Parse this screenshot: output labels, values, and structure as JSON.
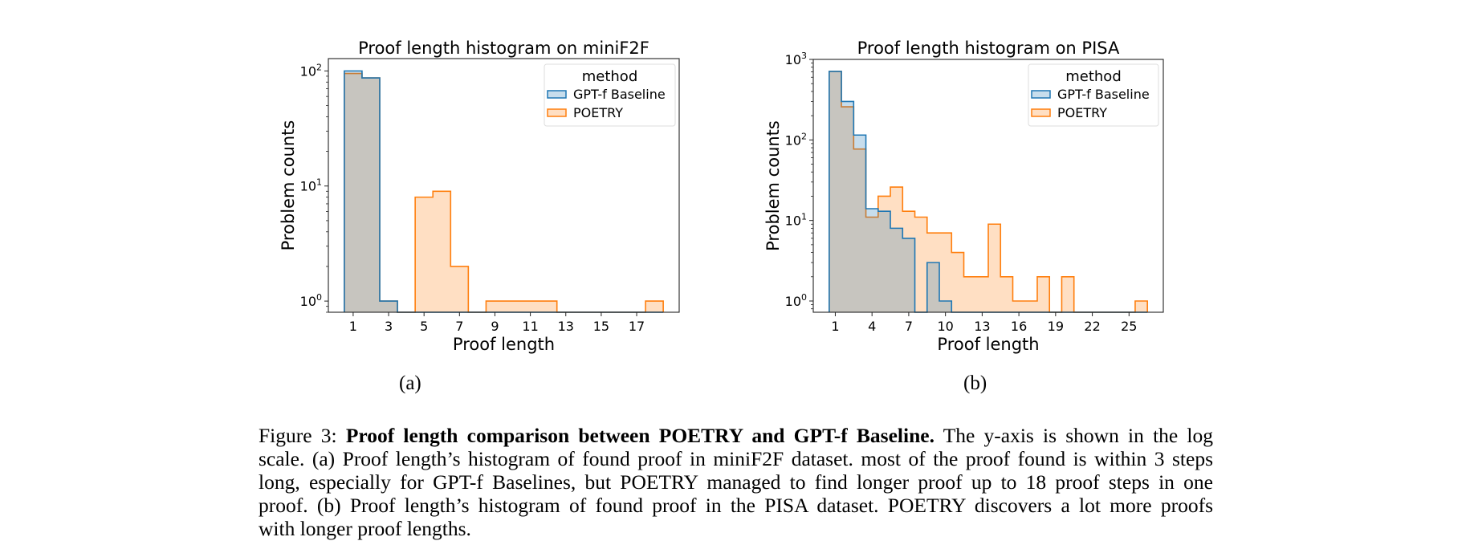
{
  "chart_data": [
    {
      "type": "bar",
      "subtype": "step histogram",
      "title": "Proof length histogram on miniF2F",
      "xlabel": "Proof length",
      "ylabel": "Problem counts",
      "yscale": "log",
      "ylim": [
        0.8,
        128
      ],
      "xlim": [
        -0.4,
        19.4
      ],
      "xticks": [
        1,
        3,
        5,
        7,
        9,
        11,
        13,
        15,
        17
      ],
      "yticks": [
        {
          "value": 1,
          "base": "10",
          "exp": "0"
        },
        {
          "value": 10,
          "base": "10",
          "exp": "1"
        },
        {
          "value": 100,
          "base": "10",
          "exp": "2"
        }
      ],
      "legend": {
        "title": "method",
        "placement": "top-right"
      },
      "grid": false,
      "categories": [
        1,
        2,
        3,
        4,
        5,
        6,
        7,
        8,
        9,
        10,
        11,
        12,
        13,
        14,
        15,
        16,
        17,
        18
      ],
      "series": [
        {
          "name": "POETRY",
          "color": "#ff7f0e",
          "values": [
            95,
            87,
            1,
            0,
            8,
            9,
            2,
            0,
            1,
            1,
            1,
            1,
            0,
            0,
            0,
            0,
            0,
            1
          ]
        },
        {
          "name": "GPT-f Baseline",
          "color": "#1f77b4",
          "values": [
            100,
            87,
            1,
            0,
            0,
            0,
            0,
            0,
            0,
            0,
            0,
            0,
            0,
            0,
            0,
            0,
            0,
            0
          ]
        }
      ]
    },
    {
      "type": "bar",
      "subtype": "step histogram",
      "title": "Proof length histogram on PISA",
      "xlabel": "Proof length",
      "ylabel": "Problem counts",
      "yscale": "log",
      "ylim": [
        0.725,
        1000
      ],
      "xlim": [
        -0.8,
        27.8
      ],
      "xticks": [
        1,
        4,
        7,
        10,
        13,
        16,
        19,
        22,
        25
      ],
      "yticks": [
        {
          "value": 1,
          "base": "10",
          "exp": "0"
        },
        {
          "value": 10,
          "base": "10",
          "exp": "1"
        },
        {
          "value": 100,
          "base": "10",
          "exp": "2"
        },
        {
          "value": 1000,
          "base": "10",
          "exp": "3"
        }
      ],
      "legend": {
        "title": "method",
        "placement": "top-right"
      },
      "grid": false,
      "categories": [
        1,
        2,
        3,
        4,
        5,
        6,
        7,
        8,
        9,
        10,
        11,
        12,
        13,
        14,
        15,
        16,
        17,
        18,
        19,
        20,
        21,
        22,
        23,
        24,
        25,
        26
      ],
      "series": [
        {
          "name": "POETRY",
          "color": "#ff7f0e",
          "values": [
            710,
            258,
            77,
            11,
            20,
            26,
            13,
            11,
            7,
            7,
            4,
            2,
            2,
            9,
            2,
            1,
            1,
            2,
            0,
            2,
            0,
            0,
            0,
            0,
            0,
            1
          ]
        },
        {
          "name": "GPT-f Baseline",
          "color": "#1f77b4",
          "values": [
            710,
            300,
            115,
            14,
            13,
            8,
            6,
            0,
            3,
            1,
            0,
            0,
            0,
            0,
            0,
            0,
            0,
            0,
            0,
            0,
            0,
            0,
            0,
            0,
            0,
            0
          ]
        }
      ]
    }
  ],
  "subfigures": {
    "a": "(a)",
    "b": "(b)"
  },
  "caption": {
    "label": "Figure 3:",
    "bold": "Proof length comparison between POETRY and GPT-f Baseline.",
    "line1_rest": "The y-axis is shown in the log",
    "line2": "scale. (a) Proof length’s histogram of found proof in miniF2F dataset. most of the proof found is within 3 steps",
    "line3": "long, especially for GPT-f Baselines, but POETRY managed to find longer proof up to 18 proof steps in one",
    "line4": "proof. (b) Proof length’s histogram of found proof in the PISA dataset. POETRY discovers a lot more proofs",
    "line5": "with longer proof lengths."
  }
}
